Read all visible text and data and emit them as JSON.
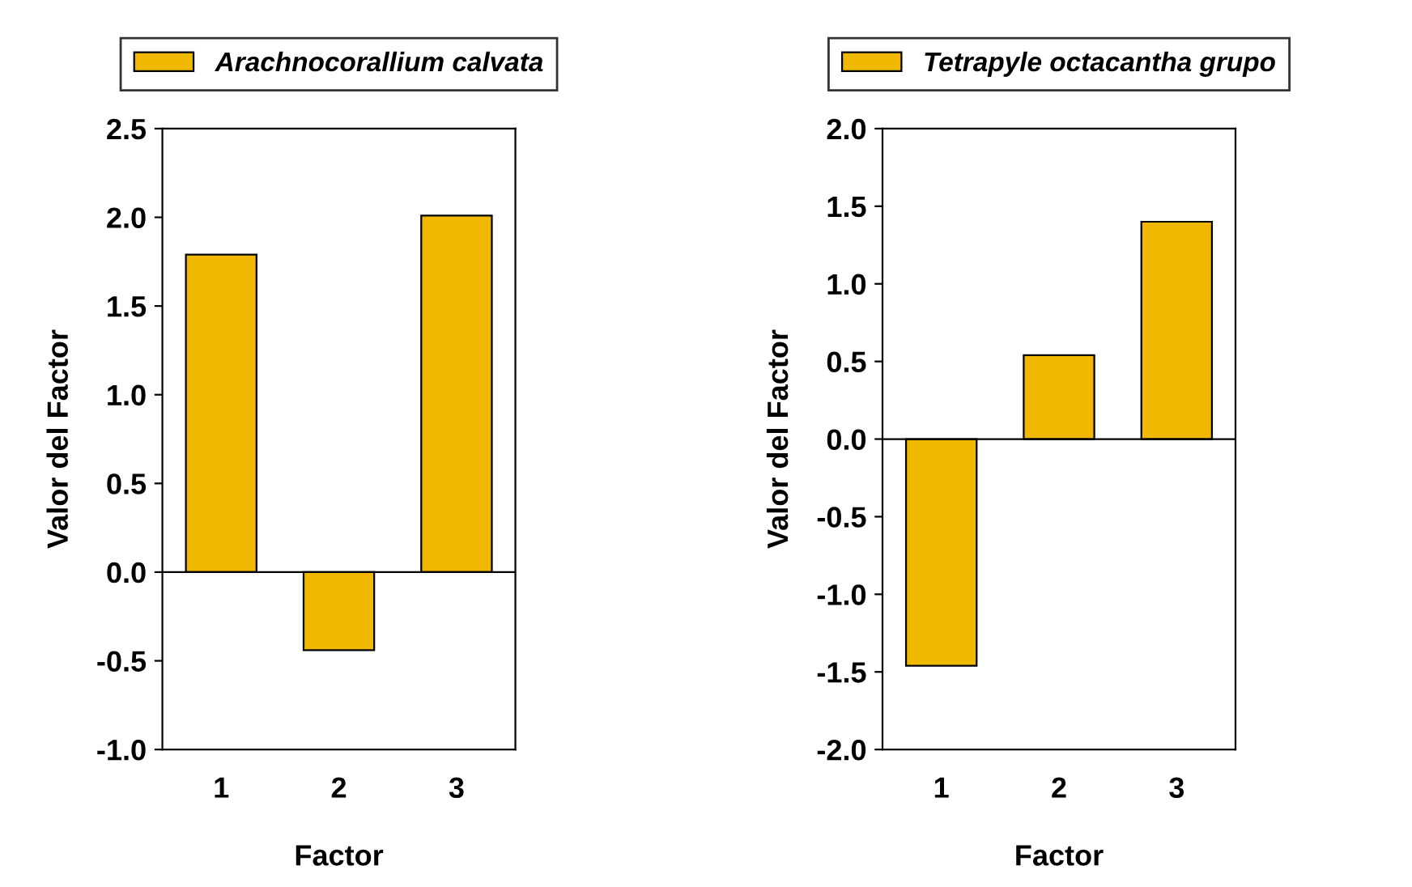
{
  "chart_data": [
    {
      "type": "bar",
      "xlabel": "Factor",
      "ylabel": "Valor del Factor",
      "categories": [
        "1",
        "2",
        "3"
      ],
      "series": [
        {
          "name": "Arachnocorallium calvata",
          "color": "#f0b800",
          "values": [
            1.79,
            -0.44,
            2.01
          ]
        }
      ],
      "ylim": [
        -1.0,
        2.5
      ],
      "yticks": [
        {
          "value": -1.0,
          "label": "-1.0"
        },
        {
          "value": -0.5,
          "label": "-0.5"
        },
        {
          "value": 0.0,
          "label": "0.0"
        },
        {
          "value": 0.5,
          "label": "0.5"
        },
        {
          "value": 1.0,
          "label": "1.0"
        },
        {
          "value": 1.5,
          "label": "1.5"
        },
        {
          "value": 2.0,
          "label": "2.0"
        },
        {
          "value": 2.5,
          "label": "2.5"
        }
      ],
      "ref_lines": [
        {
          "axis": "y",
          "value": 0
        }
      ],
      "grid": false,
      "legend": "top"
    },
    {
      "type": "bar",
      "xlabel": "Factor",
      "ylabel": "Valor del Factor",
      "categories": [
        "1",
        "2",
        "3"
      ],
      "series": [
        {
          "name": "Tetrapyle octacantha grupo",
          "color": "#f0b800",
          "values": [
            -1.46,
            0.54,
            1.4
          ]
        }
      ],
      "ylim": [
        -2.0,
        2.0
      ],
      "yticks": [
        {
          "value": -2.0,
          "label": "-2.0"
        },
        {
          "value": -1.5,
          "label": "-1.5"
        },
        {
          "value": -1.0,
          "label": "-1.0"
        },
        {
          "value": -0.5,
          "label": "-0.5"
        },
        {
          "value": 0.0,
          "label": "0.0"
        },
        {
          "value": 0.5,
          "label": "0.5"
        },
        {
          "value": 1.0,
          "label": "1.0"
        },
        {
          "value": 1.5,
          "label": "1.5"
        },
        {
          "value": 2.0,
          "label": "2.0"
        }
      ],
      "ref_lines": [
        {
          "axis": "y",
          "value": 0
        }
      ],
      "grid": false,
      "legend": "top"
    }
  ]
}
